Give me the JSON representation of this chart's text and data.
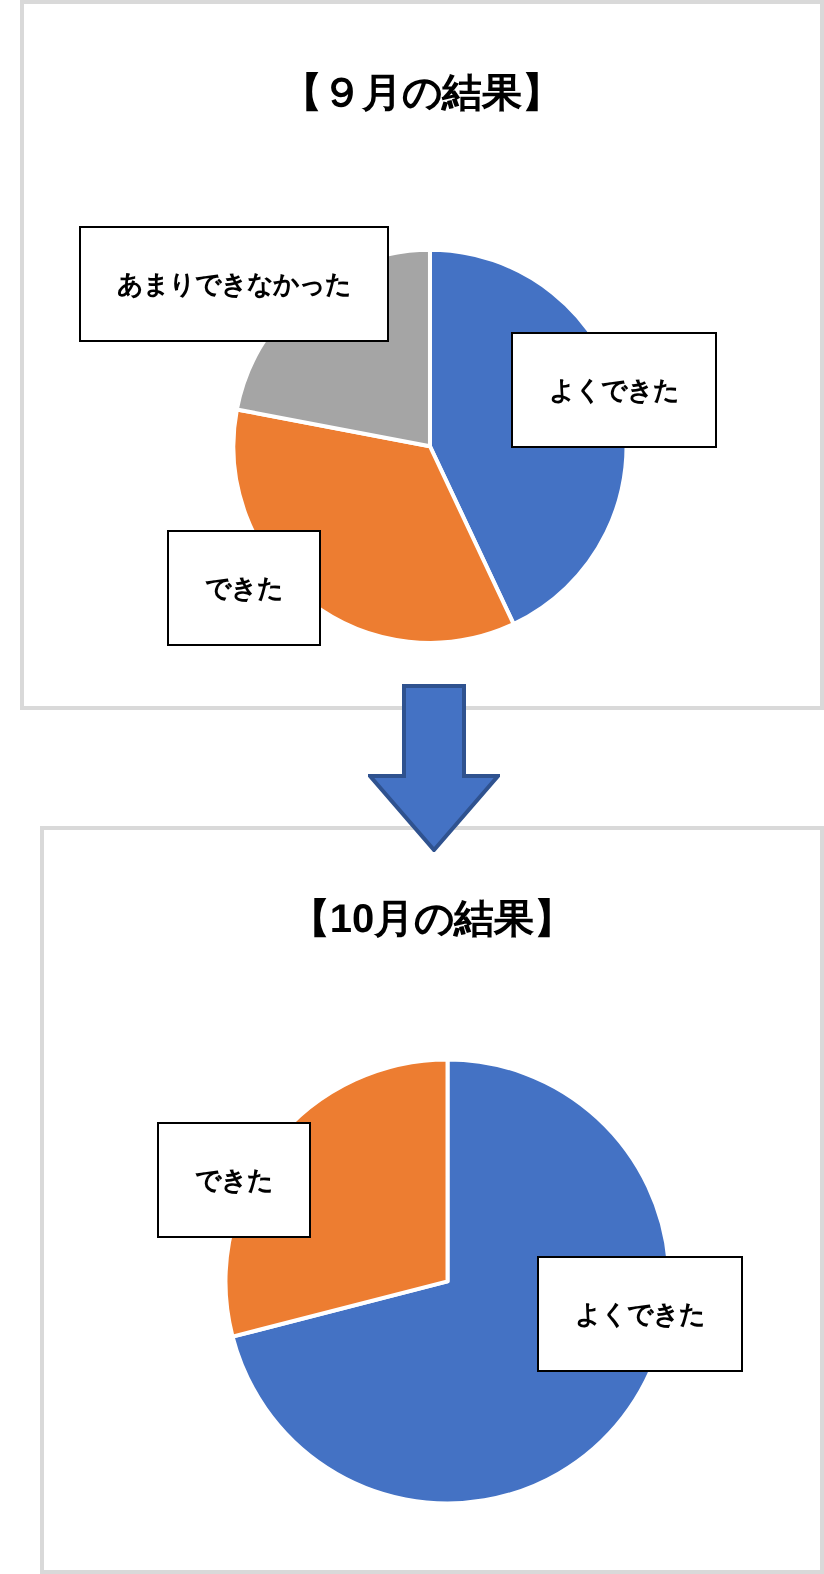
{
  "chart_data": [
    {
      "type": "pie",
      "title": "【９月の結果】",
      "categories": [
        "よくできた",
        "できた",
        "あまりできなかった"
      ],
      "values": [
        43,
        35,
        22
      ],
      "colors": [
        "#4472c4",
        "#ed7d31",
        "#a5a5a5"
      ],
      "legend": false
    },
    {
      "type": "pie",
      "title": "【10月の結果】",
      "categories": [
        "よくできた",
        "できた"
      ],
      "values": [
        71,
        29
      ],
      "colors": [
        "#4472c4",
        "#ed7d31"
      ],
      "legend": false
    }
  ]
}
